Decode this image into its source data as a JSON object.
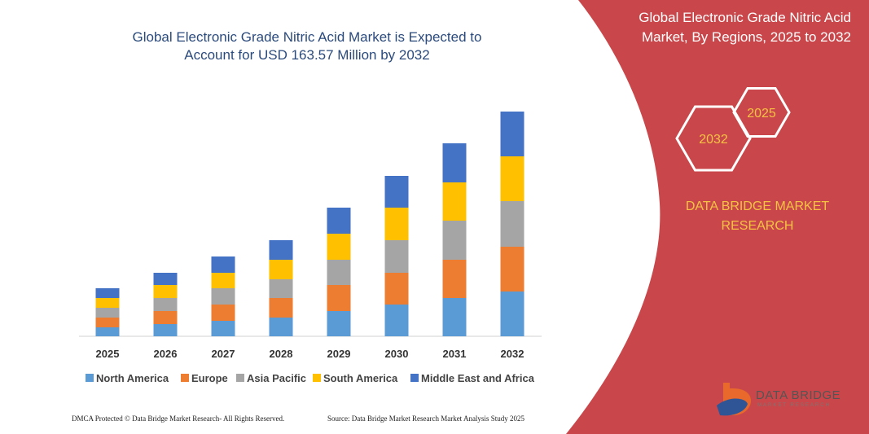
{
  "chart_data": {
    "type": "bar",
    "stacked": true,
    "title": "Global Electronic Grade Nitric Acid Market is Expected to Account for USD 163.57 Million by 2032",
    "categories": [
      "2025",
      "2026",
      "2027",
      "2028",
      "2029",
      "2030",
      "2031",
      "2032"
    ],
    "series": [
      {
        "name": "North America",
        "color": "#5b9bd5",
        "values": [
          11,
          15,
          19,
          23,
          31,
          39,
          47,
          55
        ]
      },
      {
        "name": "Europe",
        "color": "#ed7d31",
        "values": [
          12,
          16,
          20,
          24,
          32,
          39,
          47,
          55
        ]
      },
      {
        "name": "Asia Pacific",
        "color": "#a5a5a5",
        "values": [
          12,
          16,
          20,
          23,
          31,
          40,
          48,
          56
        ]
      },
      {
        "name": "South America",
        "color": "#ffc000",
        "values": [
          12,
          16,
          19,
          24,
          32,
          40,
          47,
          55
        ]
      },
      {
        "name": "Middle East and Africa",
        "color": "#4472c4",
        "values": [
          12,
          15,
          20,
          24,
          32,
          39,
          48,
          55
        ]
      }
    ]
  },
  "panel": {
    "title": "Global Electronic Grade Nitric Acid Market, By Regions, 2025 to 2032",
    "badges": [
      "2032",
      "2025"
    ],
    "brand": "DATA BRIDGE MARKET RESEARCH"
  },
  "footer": {
    "protection": "DMCA Protected © Data Bridge Market Research-  All Rights Reserved.",
    "source": "Source: Data Bridge Market Research  Market Analysis Study 2025"
  },
  "logo": {
    "name": "DATA BRIDGE",
    "tagline": "MARKET RESEARCH"
  }
}
